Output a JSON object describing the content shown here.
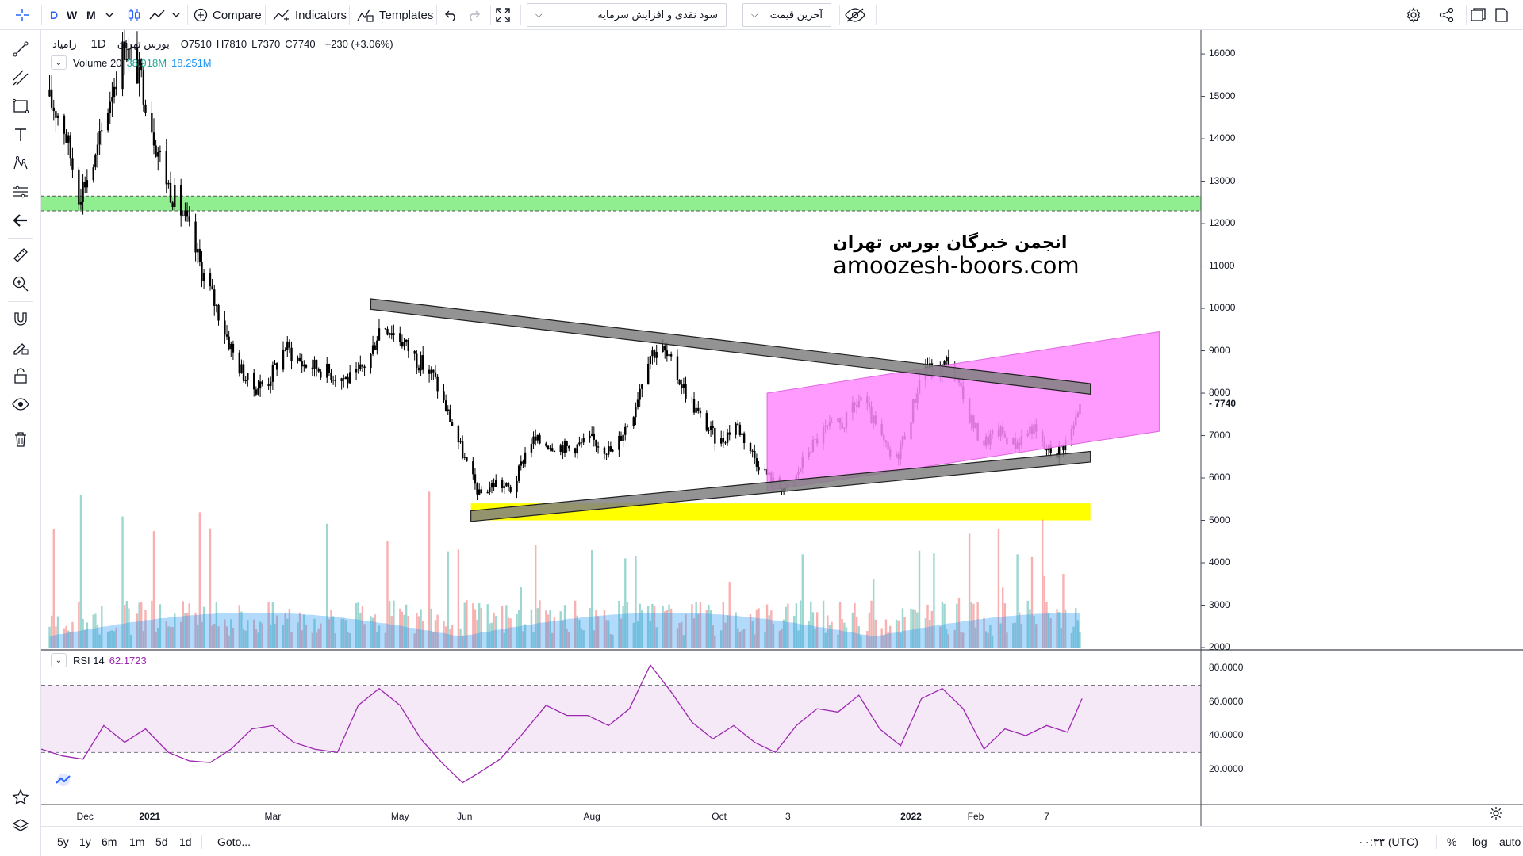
{
  "toolbar": {
    "intervals": [
      "D",
      "W",
      "M"
    ],
    "compare_label": "Compare",
    "indicators_label": "Indicators",
    "templates_label": "Templates",
    "symbol_select": "سود نقدی و افزایش سرمایه",
    "price_select": "آخرین قیمت"
  },
  "legend": {
    "symbol": "بورس تهران",
    "name": "زامیاد",
    "interval": "1D",
    "o_label": "O",
    "o_value": "7510",
    "h_label": "H",
    "h_value": "7810",
    "l_label": "L",
    "l_value": "7370",
    "c_label": "C",
    "c_value": "7740",
    "change": "+230 (+3.06%)",
    "volume_label": "Volume 20",
    "volume_value1": "38.918M",
    "volume_value2": "18.251M",
    "rsi_label": "RSI 14",
    "rsi_value": "62.1723"
  },
  "watermark": {
    "line1": "انجمن خبرگان بورس تهران",
    "line2": "amoozesh-boors.com"
  },
  "price_axis": {
    "ticks": [
      "16000",
      "15000",
      "14000",
      "13000",
      "12000",
      "11000",
      "10000",
      "9000",
      "8000",
      "7000",
      "6000",
      "5000",
      "4000",
      "3000",
      "2000"
    ],
    "last_price": "7740"
  },
  "rsi_axis": {
    "ticks": [
      "80.0000",
      "60.0000",
      "40.0000",
      "20.0000"
    ]
  },
  "time_axis": {
    "ticks": [
      "Dec",
      "2021",
      "Mar",
      "May",
      "Jun",
      "Aug",
      "Oct",
      "3",
      "2022",
      "Feb",
      "7"
    ]
  },
  "bottombar": {
    "ranges": [
      "5y",
      "1y",
      "6m",
      "1m",
      "5d",
      "1d"
    ],
    "goto_label": "Goto...",
    "clock": "۰۰:۳۳ (UTC)",
    "percent_label": "%",
    "log_label": "log",
    "auto_label": "auto"
  },
  "chart_data": {
    "type": "candlestick",
    "symbol": "زامیاد",
    "interval": "1D",
    "ylim": [
      2000,
      16500
    ],
    "grid": false,
    "x_range": [
      "2020-11-10",
      "2022-03-08"
    ],
    "close_path": [
      {
        "x": "2020-11-12",
        "y": 15000
      },
      {
        "x": "2020-11-20",
        "y": 14500
      },
      {
        "x": "2020-11-28",
        "y": 12700
      },
      {
        "x": "2020-12-06",
        "y": 13500
      },
      {
        "x": "2020-12-14",
        "y": 15200
      },
      {
        "x": "2020-12-20",
        "y": 16200
      },
      {
        "x": "2020-12-28",
        "y": 15400
      },
      {
        "x": "2021-01-04",
        "y": 13900
      },
      {
        "x": "2021-01-10",
        "y": 12900
      },
      {
        "x": "2021-01-18",
        "y": 12100
      },
      {
        "x": "2021-01-26",
        "y": 10900
      },
      {
        "x": "2021-02-03",
        "y": 9900
      },
      {
        "x": "2021-02-11",
        "y": 8800
      },
      {
        "x": "2021-02-19",
        "y": 8100
      },
      {
        "x": "2021-02-27",
        "y": 8300
      },
      {
        "x": "2021-03-07",
        "y": 9100
      },
      {
        "x": "2021-03-15",
        "y": 8700
      },
      {
        "x": "2021-03-23",
        "y": 8600
      },
      {
        "x": "2021-04-01",
        "y": 8400
      },
      {
        "x": "2021-04-09",
        "y": 8300
      },
      {
        "x": "2021-04-17",
        "y": 8900
      },
      {
        "x": "2021-04-22",
        "y": 9700
      },
      {
        "x": "2021-05-01",
        "y": 9300
      },
      {
        "x": "2021-05-09",
        "y": 8800
      },
      {
        "x": "2021-05-17",
        "y": 8400
      },
      {
        "x": "2021-05-25",
        "y": 7400
      },
      {
        "x": "2021-06-02",
        "y": 6300
      },
      {
        "x": "2021-06-08",
        "y": 5600
      },
      {
        "x": "2021-06-16",
        "y": 5900
      },
      {
        "x": "2021-06-24",
        "y": 5700
      },
      {
        "x": "2021-07-02",
        "y": 6900
      },
      {
        "x": "2021-07-12",
        "y": 6800
      },
      {
        "x": "2021-07-22",
        "y": 6700
      },
      {
        "x": "2021-08-01",
        "y": 6900
      },
      {
        "x": "2021-08-11",
        "y": 6600
      },
      {
        "x": "2021-08-21",
        "y": 7600
      },
      {
        "x": "2021-08-28",
        "y": 8900
      },
      {
        "x": "2021-09-03",
        "y": 9100
      },
      {
        "x": "2021-09-11",
        "y": 8400
      },
      {
        "x": "2021-09-21",
        "y": 7500
      },
      {
        "x": "2021-10-01",
        "y": 6800
      },
      {
        "x": "2021-10-09",
        "y": 7300
      },
      {
        "x": "2021-10-19",
        "y": 6400
      },
      {
        "x": "2021-10-27",
        "y": 5900
      },
      {
        "x": "2021-11-04",
        "y": 5700
      },
      {
        "x": "2021-11-12",
        "y": 6600
      },
      {
        "x": "2021-11-20",
        "y": 7100
      },
      {
        "x": "2021-11-30",
        "y": 7300
      },
      {
        "x": "2021-12-08",
        "y": 7900
      },
      {
        "x": "2021-12-16",
        "y": 7100
      },
      {
        "x": "2021-12-24",
        "y": 6300
      },
      {
        "x": "2022-01-01",
        "y": 7500
      },
      {
        "x": "2022-01-07",
        "y": 8700
      },
      {
        "x": "2022-01-13",
        "y": 8400
      },
      {
        "x": "2022-01-19",
        "y": 8800
      },
      {
        "x": "2022-01-27",
        "y": 7700
      },
      {
        "x": "2022-02-04",
        "y": 6800
      },
      {
        "x": "2022-02-12",
        "y": 7100
      },
      {
        "x": "2022-02-20",
        "y": 6800
      },
      {
        "x": "2022-02-28",
        "y": 7200
      },
      {
        "x": "2022-03-06",
        "y": 6700
      },
      {
        "x": "2022-03-12",
        "y": 6600
      },
      {
        "x": "2022-03-18",
        "y": 7000
      },
      {
        "x": "2022-03-24",
        "y": 7740
      }
    ],
    "zones": [
      {
        "name": "resistance-zone",
        "color": "#90ee90",
        "y_low": 12300,
        "y_high": 12650,
        "x_start": "2020-11-10"
      },
      {
        "name": "support-zone",
        "color": "#ffff00",
        "y_low": 5000,
        "y_high": 5400,
        "x_start": "2021-06-04",
        "x_end": "2022-03-28"
      }
    ],
    "trend_lines": [
      {
        "name": "upper-falling-trendline",
        "color": "#808080",
        "p1": {
          "x": "2021-04-17",
          "y": 10100
        },
        "p2": {
          "x": "2022-03-28",
          "y": 8100
        },
        "thickness": 250
      },
      {
        "name": "lower-rising-trendline",
        "color": "#808080",
        "p1": {
          "x": "2021-06-04",
          "y": 5100
        },
        "p2": {
          "x": "2022-03-28",
          "y": 6500
        },
        "thickness": 250
      }
    ],
    "channel": {
      "color": "#ff88ff",
      "x_start": "2021-10-24",
      "x_end": "2022-04-30",
      "top_start": 8000,
      "top_end": 9450,
      "bottom_start": 5700,
      "bottom_end": 7100
    },
    "volume": {
      "series_label": "Volume 20",
      "ma_value": "18.251M",
      "last": "38.918M"
    },
    "rsi": {
      "period": 14,
      "last": 62.1723,
      "ylim": [
        0,
        90
      ],
      "upper_band": 70,
      "lower_band": 30,
      "line_color": "#9c27b0",
      "points": [
        {
          "x": "2020-11-10",
          "y": 32
        },
        {
          "x": "2020-11-20",
          "y": 28
        },
        {
          "x": "2020-11-30",
          "y": 26
        },
        {
          "x": "2020-12-10",
          "y": 46
        },
        {
          "x": "2020-12-20",
          "y": 36
        },
        {
          "x": "2020-12-30",
          "y": 44
        },
        {
          "x": "2021-01-10",
          "y": 30
        },
        {
          "x": "2021-01-20",
          "y": 25
        },
        {
          "x": "2021-01-30",
          "y": 24
        },
        {
          "x": "2021-02-09",
          "y": 32
        },
        {
          "x": "2021-02-19",
          "y": 44
        },
        {
          "x": "2021-03-01",
          "y": 46
        },
        {
          "x": "2021-03-11",
          "y": 36
        },
        {
          "x": "2021-03-21",
          "y": 32
        },
        {
          "x": "2021-04-01",
          "y": 30
        },
        {
          "x": "2021-04-11",
          "y": 58
        },
        {
          "x": "2021-04-21",
          "y": 68
        },
        {
          "x": "2021-05-01",
          "y": 58
        },
        {
          "x": "2021-05-11",
          "y": 38
        },
        {
          "x": "2021-05-21",
          "y": 24
        },
        {
          "x": "2021-05-31",
          "y": 12
        },
        {
          "x": "2021-06-08",
          "y": 18
        },
        {
          "x": "2021-06-18",
          "y": 26
        },
        {
          "x": "2021-06-28",
          "y": 40
        },
        {
          "x": "2021-07-10",
          "y": 58
        },
        {
          "x": "2021-07-20",
          "y": 52
        },
        {
          "x": "2021-07-30",
          "y": 52
        },
        {
          "x": "2021-08-09",
          "y": 46
        },
        {
          "x": "2021-08-19",
          "y": 56
        },
        {
          "x": "2021-08-29",
          "y": 82
        },
        {
          "x": "2021-09-08",
          "y": 66
        },
        {
          "x": "2021-09-18",
          "y": 48
        },
        {
          "x": "2021-09-28",
          "y": 38
        },
        {
          "x": "2021-10-08",
          "y": 46
        },
        {
          "x": "2021-10-18",
          "y": 36
        },
        {
          "x": "2021-10-28",
          "y": 30
        },
        {
          "x": "2021-11-07",
          "y": 46
        },
        {
          "x": "2021-11-17",
          "y": 56
        },
        {
          "x": "2021-11-27",
          "y": 54
        },
        {
          "x": "2021-12-07",
          "y": 64
        },
        {
          "x": "2021-12-17",
          "y": 44
        },
        {
          "x": "2021-12-27",
          "y": 34
        },
        {
          "x": "2022-01-06",
          "y": 62
        },
        {
          "x": "2022-01-16",
          "y": 68
        },
        {
          "x": "2022-01-26",
          "y": 56
        },
        {
          "x": "2022-02-05",
          "y": 32
        },
        {
          "x": "2022-02-15",
          "y": 44
        },
        {
          "x": "2022-02-25",
          "y": 40
        },
        {
          "x": "2022-03-07",
          "y": 46
        },
        {
          "x": "2022-03-17",
          "y": 42
        },
        {
          "x": "2022-03-24",
          "y": 62
        }
      ]
    }
  }
}
